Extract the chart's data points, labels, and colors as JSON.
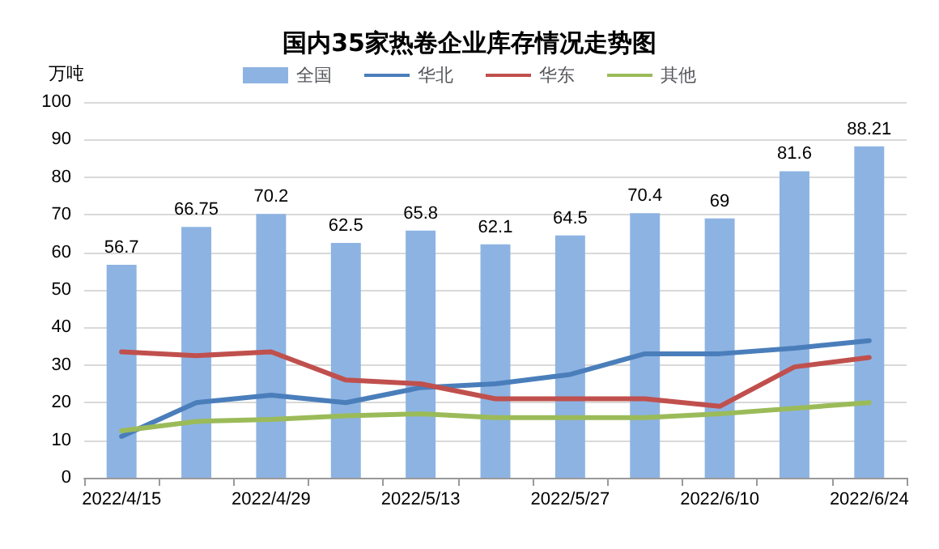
{
  "chart_data": {
    "type": "bar",
    "title": "国内35家热卷企业库存情况走势图",
    "ylabel": "万吨",
    "categories": [
      "2022/4/15",
      null,
      "2022/4/29",
      null,
      "2022/5/13",
      null,
      "2022/5/27",
      null,
      "2022/6/10",
      null,
      "2022/6/24"
    ],
    "series": [
      {
        "name": "全国",
        "color": "#8db3e2",
        "values": [
          56.7,
          66.75,
          70.2,
          62.5,
          65.8,
          62.1,
          64.5,
          70.4,
          69,
          81.6,
          88.21
        ],
        "data_labels": true
      },
      {
        "name": "华北",
        "type": "line",
        "color": "#4a7ebb",
        "values": [
          11,
          20,
          22,
          20,
          24,
          25,
          27.5,
          33,
          33,
          34.5,
          36.5
        ]
      },
      {
        "name": "华东",
        "type": "line",
        "color": "#c0504d",
        "values": [
          33.5,
          32.5,
          33.5,
          26,
          25,
          21,
          21,
          21,
          19,
          29.5,
          32
        ]
      },
      {
        "name": "其他",
        "type": "line",
        "color": "#9bbb59",
        "values": [
          12.5,
          15,
          15.5,
          16.5,
          17,
          16,
          16,
          16,
          17,
          18.5,
          20
        ]
      }
    ],
    "ylim": [
      0,
      100
    ],
    "yticks": [
      0,
      10,
      20,
      30,
      40,
      50,
      60,
      70,
      80,
      90,
      100
    ],
    "grid": "y",
    "legend": "top",
    "marker": "none",
    "line_style": "solid"
  }
}
